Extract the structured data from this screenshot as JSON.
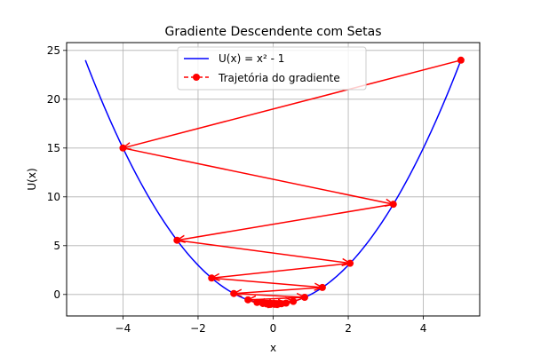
{
  "chart_data": {
    "type": "line",
    "title": "Gradiente Descendente com Setas",
    "xlabel": "x",
    "ylabel": "U(x)",
    "xlim": [
      -5.5,
      5.5
    ],
    "ylim": [
      -2.2,
      25.8
    ],
    "xticks": [
      -4,
      -2,
      0,
      2,
      4
    ],
    "yticks": [
      0,
      5,
      10,
      15,
      20,
      25
    ],
    "grid": true,
    "legend_position": "top-center",
    "series": [
      {
        "name": "U(x) = x² - 1",
        "kind": "function",
        "formula": "x^2 - 1",
        "x_range": [
          -5,
          5
        ],
        "color": "#0000ff"
      },
      {
        "name": "Trajetória do gradiente",
        "kind": "trajectory",
        "color": "#ff0000",
        "points": [
          [
            5.0,
            24.0
          ],
          [
            -4.0,
            15.0
          ],
          [
            3.2,
            9.24
          ],
          [
            -2.56,
            5.5536
          ],
          [
            2.048,
            3.1943
          ],
          [
            -1.6384,
            1.6844
          ],
          [
            1.3107,
            0.718
          ],
          [
            -1.0486,
            0.0995
          ],
          [
            0.8389,
            -0.2963
          ],
          [
            -0.6711,
            -0.5496
          ],
          [
            0.5369,
            -0.7117
          ],
          [
            -0.4295,
            -0.8155
          ],
          [
            0.3436,
            -0.8819
          ],
          [
            -0.2749,
            -0.9244
          ],
          [
            0.2199,
            -0.9516
          ],
          [
            -0.1759,
            -0.969
          ],
          [
            0.1407,
            -0.9802
          ],
          [
            -0.1126,
            -0.9873
          ],
          [
            0.0901,
            -0.9919
          ],
          [
            -0.0721,
            -0.9948
          ],
          [
            0.0576,
            -0.9967
          ]
        ]
      }
    ]
  }
}
